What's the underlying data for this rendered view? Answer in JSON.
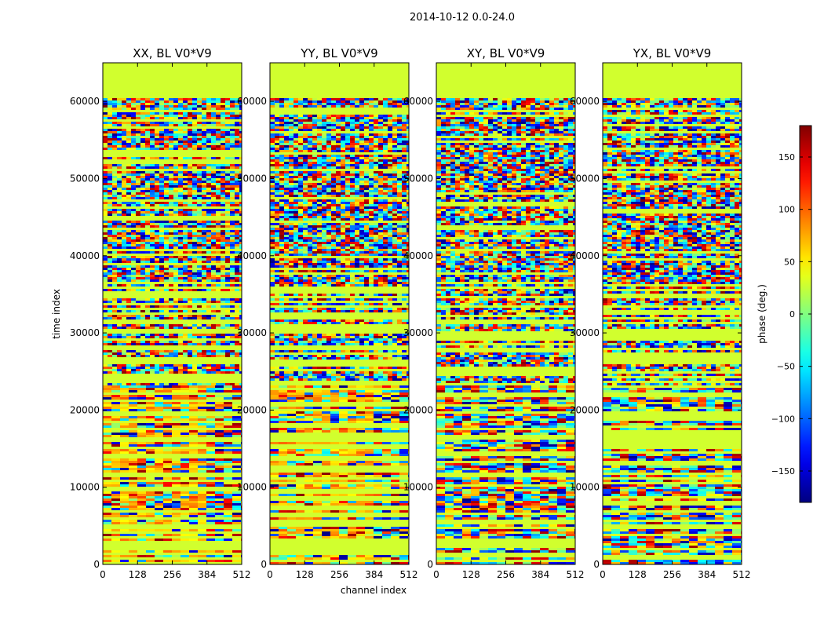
{
  "figure": {
    "suptitle": "2014-10-12 0.0-24.0"
  },
  "chart_data": {
    "type": "heatmap",
    "panels": [
      {
        "title": "XX, BL V0*V9"
      },
      {
        "title": "YY, BL V0*V9"
      },
      {
        "title": "XY, BL V0*V9"
      },
      {
        "title": "YX, BL V0*V9"
      }
    ],
    "xlabel": "channel index",
    "ylabel": "time index",
    "xlim": [
      0,
      512
    ],
    "ylim": [
      0,
      65000
    ],
    "xticks": [
      0,
      128,
      256,
      384,
      512
    ],
    "yticks": [
      0,
      10000,
      20000,
      30000,
      40000,
      50000,
      60000
    ],
    "colorbar": {
      "label": "phase (deg.)",
      "range": [
        -180,
        180
      ],
      "ticks": [
        150,
        100,
        50,
        0,
        -50,
        -100,
        -150
      ],
      "colormap": "jet"
    },
    "tick_labels": {
      "x": [
        "0",
        "128",
        "256",
        "384",
        "512"
      ],
      "y": [
        "0",
        "10000",
        "20000",
        "30000",
        "40000",
        "50000",
        "60000"
      ],
      "cb": [
        "150",
        "100",
        "50",
        "0",
        "−50",
        "−100",
        "−150"
      ]
    }
  }
}
